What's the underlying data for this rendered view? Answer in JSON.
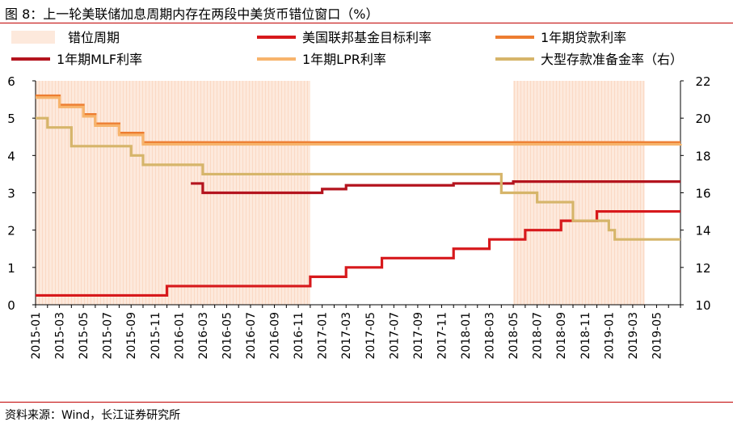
{
  "figure_title": "图 8：上一轮美联储加息周期内存在两段中美货币错位窗口（%）",
  "source": "资料来源：Wind，长江证券研究所",
  "colors": {
    "shade": "#fde9dc",
    "fed": "#d7191c",
    "loan": "#ed7d31",
    "mlf": "#b4141e",
    "lpr": "#f7b46c",
    "rrr": "#d6b56a"
  },
  "chart_data": {
    "type": "line",
    "x_start": "2015-01",
    "x_end": "2019-07",
    "x_tick_labels": [
      "2015-01",
      "2015-03",
      "2015-05",
      "2015-07",
      "2015-09",
      "2015-11",
      "2016-01",
      "2016-03",
      "2016-05",
      "2016-07",
      "2016-09",
      "2016-11",
      "2017-01",
      "2017-03",
      "2017-05",
      "2017-07",
      "2017-09",
      "2017-11",
      "2018-01",
      "2018-03",
      "2018-05",
      "2018-07",
      "2018-09",
      "2018-11",
      "2019-01",
      "2019-03",
      "2019-05"
    ],
    "y_left": {
      "min": 0,
      "max": 6,
      "ticks": [
        0,
        1,
        2,
        3,
        4,
        5,
        6
      ]
    },
    "y_right": {
      "min": 10,
      "max": 22,
      "ticks": [
        10,
        12,
        14,
        16,
        18,
        20,
        22
      ]
    },
    "shaded_windows": {
      "label": "错位周期",
      "periods": [
        [
          "2015-01",
          "2016-12"
        ],
        [
          "2018-05",
          "2019-04"
        ]
      ]
    },
    "series": [
      {
        "name": "美国联邦基金目标利率",
        "axis": "left",
        "color_key": "fed",
        "points": [
          [
            "2015-01",
            0.25
          ],
          [
            "2015-12",
            0.5
          ],
          [
            "2016-12",
            0.75
          ],
          [
            "2017-03",
            1.0
          ],
          [
            "2017-06",
            1.25
          ],
          [
            "2017-12",
            1.5
          ],
          [
            "2018-03",
            1.75
          ],
          [
            "2018-06",
            2.0
          ],
          [
            "2018-09",
            2.25
          ],
          [
            "2018-12",
            2.5
          ],
          [
            "2019-07",
            2.5
          ]
        ]
      },
      {
        "name": "1年期贷款利率",
        "axis": "left",
        "color_key": "loan",
        "points": [
          [
            "2015-01",
            5.6
          ],
          [
            "2015-03",
            5.35
          ],
          [
            "2015-05",
            5.1
          ],
          [
            "2015-06",
            4.85
          ],
          [
            "2015-08",
            4.6
          ],
          [
            "2015-10",
            4.35
          ],
          [
            "2019-07",
            4.35
          ]
        ]
      },
      {
        "name": "1年期MLF利率",
        "axis": "left",
        "color_key": "mlf",
        "points": [
          [
            "2016-02",
            3.25
          ],
          [
            "2016-03",
            3.0
          ],
          [
            "2017-01",
            3.1
          ],
          [
            "2017-03",
            3.2
          ],
          [
            "2017-12",
            3.25
          ],
          [
            "2018-05",
            3.3
          ],
          [
            "2019-07",
            3.3
          ]
        ]
      },
      {
        "name": "1年期LPR利率",
        "axis": "left",
        "color_key": "lpr",
        "points": [
          [
            "2015-01",
            5.55
          ],
          [
            "2015-03",
            5.3
          ],
          [
            "2015-05",
            5.05
          ],
          [
            "2015-06",
            4.8
          ],
          [
            "2015-08",
            4.55
          ],
          [
            "2015-10",
            4.3
          ],
          [
            "2019-07",
            4.31
          ]
        ]
      },
      {
        "name": "大型存款准备金率（右）",
        "axis": "right",
        "color_key": "rrr",
        "points": [
          [
            "2015-01",
            20.0
          ],
          [
            "2015-02",
            19.5
          ],
          [
            "2015-04",
            18.5
          ],
          [
            "2015-09",
            18.0
          ],
          [
            "2015-10",
            17.5
          ],
          [
            "2016-03",
            17.0
          ],
          [
            "2018-04",
            16.0
          ],
          [
            "2018-07",
            15.5
          ],
          [
            "2018-10",
            14.5
          ],
          [
            "2019-01",
            14.0
          ],
          [
            "2019-01.5",
            13.5
          ],
          [
            "2019-07",
            13.5
          ]
        ]
      }
    ]
  }
}
